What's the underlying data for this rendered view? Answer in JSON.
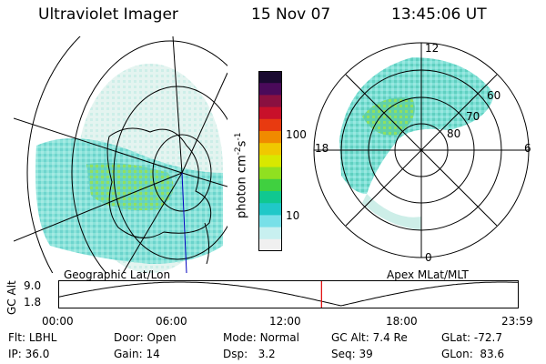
{
  "header": {
    "instrument": "Ultraviolet Imager",
    "date": "15 Nov 07",
    "time": "13:45:06 UT"
  },
  "left_panel": {
    "caption": "Geographic Lat/Lon"
  },
  "right_panel": {
    "caption": "Apex MLat/MLT",
    "mlt_labels": {
      "top": "12",
      "left": "18",
      "right": "6",
      "bottom": "0"
    },
    "lat_labels": [
      "60",
      "70",
      "80"
    ]
  },
  "colorbar": {
    "label": "photon cm",
    "label_sup1": "-2",
    "label_mid": "s",
    "label_sup2": "-1",
    "ticks": [
      "100",
      "10"
    ],
    "colors": [
      "#1a0a30",
      "#4a0a5a",
      "#8a1040",
      "#c8102a",
      "#e83a10",
      "#f08a00",
      "#f0c800",
      "#d8e800",
      "#90e020",
      "#40d040",
      "#10c890",
      "#20c8c8",
      "#78e0e8",
      "#c8f0f0",
      "#f0f0f0"
    ]
  },
  "timeline": {
    "ylabel": "GC Alt",
    "y_ticks": [
      "9.0",
      "1.8"
    ],
    "x_ticks": [
      "00:00",
      "06:00",
      "12:00",
      "18:00",
      "23:59"
    ],
    "current_marker_hour": 13.75,
    "marker_color": "#e00000"
  },
  "info": {
    "row1": [
      {
        "label": "Flt:",
        "value": "LBHL"
      },
      {
        "label": "Door:",
        "value": "Open"
      },
      {
        "label": "Mode:",
        "value": "Normal"
      },
      {
        "label": "GC Alt:",
        "value": "7.4 Re"
      },
      {
        "label": "GLat:",
        "value": "-72.7"
      }
    ],
    "row2": [
      {
        "label": "IP:",
        "value": "36.0"
      },
      {
        "label": "Gain:",
        "value": "14"
      },
      {
        "label": "Dsp:",
        "value": "3.2"
      },
      {
        "label": "Seq:",
        "value": "39"
      },
      {
        "label": "GLon:",
        "value": "83.6"
      }
    ]
  }
}
